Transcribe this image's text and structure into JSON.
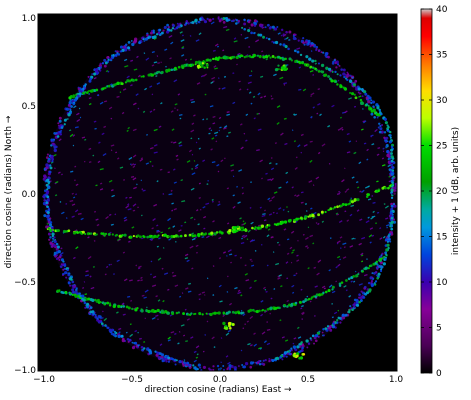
{
  "chart_data": {
    "type": "heatmap",
    "title": "",
    "xlabel": "direction cosine (radians) East →",
    "ylabel": "direction cosine (radians) North →",
    "xlim": [
      -1.0,
      1.0
    ],
    "ylim": [
      -1.0,
      1.0
    ],
    "x_ticks": [
      -1.0,
      -0.5,
      0.0,
      0.5,
      1.0
    ],
    "x_tick_labels": [
      "−1.0",
      "−0.5",
      "0.0",
      "0.5",
      "1.0"
    ],
    "y_ticks": [
      -1.0,
      -0.5,
      0.0,
      0.5,
      1.0
    ],
    "y_tick_labels": [
      "−1.0",
      "−0.5",
      "0.0",
      "0.5",
      "1.0"
    ],
    "background": "#000000",
    "colorbar": {
      "label": "intensity + 1 (dB, arb. units)",
      "range": [
        0,
        40
      ],
      "ticks": [
        0,
        5,
        10,
        15,
        20,
        25,
        30,
        35,
        40
      ],
      "tick_labels": [
        "0",
        "5",
        "10",
        "15",
        "20",
        "25",
        "30",
        "35",
        "40"
      ],
      "colormap": "spectral",
      "color_stops": [
        {
          "v": 0,
          "c": "#000000"
        },
        {
          "v": 3,
          "c": "#4a0055"
        },
        {
          "v": 7,
          "c": "#870099"
        },
        {
          "v": 10,
          "c": "#3a00b0"
        },
        {
          "v": 13,
          "c": "#0044dd"
        },
        {
          "v": 16,
          "c": "#0099dd"
        },
        {
          "v": 18,
          "c": "#00aaa0"
        },
        {
          "v": 21,
          "c": "#00a000"
        },
        {
          "v": 25,
          "c": "#00dd00"
        },
        {
          "v": 28,
          "c": "#bbff00"
        },
        {
          "v": 31,
          "c": "#ffdd00"
        },
        {
          "v": 34,
          "c": "#ff7700"
        },
        {
          "v": 37,
          "c": "#ff0000"
        },
        {
          "v": 39,
          "c": "#dd0000"
        },
        {
          "v": 40,
          "c": "#cccccc"
        }
      ]
    },
    "features": {
      "horizon_circle": {
        "radius": 1.0,
        "intensity_range": [
          6,
          15
        ]
      },
      "arcs": [
        {
          "name": "",
          "description_points": [
            [
              -0.85,
              0.55
            ],
            [
              -0.3,
              0.7
            ],
            [
              0.1,
              0.78
            ],
            [
              0.5,
              0.73
            ],
            [
              0.9,
              0.45
            ]
          ],
          "intensity": 22
        },
        {
          "name": "",
          "description_points": [
            [
              -0.98,
              -0.2
            ],
            [
              -0.5,
              -0.24
            ],
            [
              0.0,
              -0.22
            ],
            [
              0.5,
              -0.13
            ],
            [
              0.98,
              0.05
            ]
          ],
          "intensity": 24
        },
        {
          "name": "",
          "description_points": [
            [
              -0.92,
              -0.55
            ],
            [
              -0.5,
              -0.65
            ],
            [
              0.0,
              -0.68
            ],
            [
              0.5,
              -0.6
            ],
            [
              0.95,
              -0.35
            ]
          ],
          "intensity": 21
        },
        {
          "name": "",
          "description_points": [
            [
              0.02,
              1.0
            ],
            [
              0.85,
              0.55
            ],
            [
              0.98,
              0.0
            ],
            [
              0.85,
              -0.55
            ],
            [
              0.3,
              -0.95
            ]
          ],
          "intensity": 16
        },
        {
          "name": "",
          "description_points": [
            [
              -0.1,
              1.0
            ],
            [
              -0.7,
              0.7
            ],
            [
              -0.98,
              0.0
            ],
            [
              -0.7,
              -0.7
            ],
            [
              -0.1,
              -1.0
            ]
          ],
          "intensity": 14
        }
      ],
      "hotspots": [
        {
          "x": 0.45,
          "y": -0.92,
          "intensity": 31
        },
        {
          "x": 0.35,
          "y": 0.72,
          "intensity": 27
        },
        {
          "x": 0.05,
          "y": -0.75,
          "intensity": 30
        },
        {
          "x": -0.1,
          "y": 0.73,
          "intensity": 28
        },
        {
          "x": 0.1,
          "y": -0.2,
          "intensity": 29
        }
      ],
      "scattered_points_count": 900
    }
  }
}
